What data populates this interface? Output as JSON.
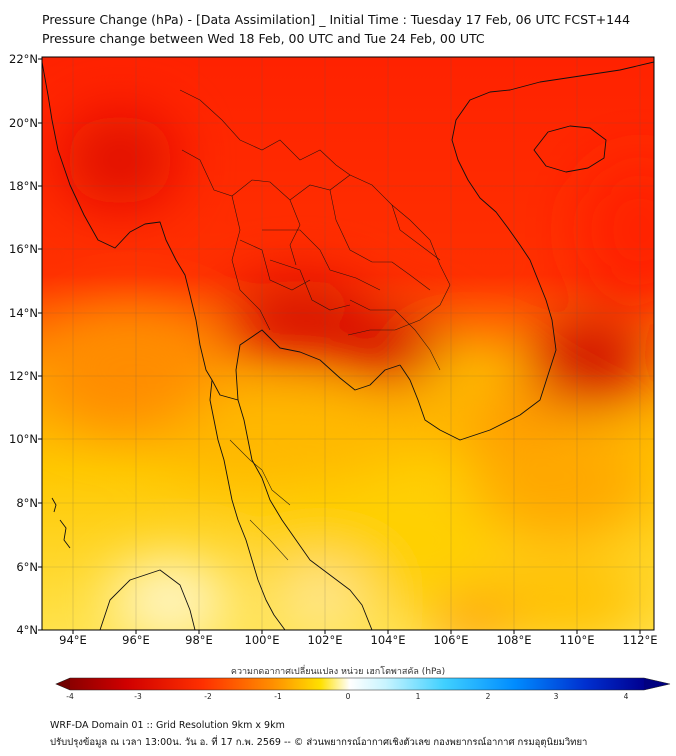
{
  "header": {
    "title": "Pressure Change (hPa) - [Data Assimilation] _ Initial Time : Tuesday 17 Feb, 06 UTC FCST+144",
    "subtitle": "Pressure change between Wed 18 Feb, 00 UTC and Tue 24 Feb, 00 UTC"
  },
  "map": {
    "lat_labels": [
      "22°N",
      "20°N",
      "18°N",
      "16°N",
      "14°N",
      "12°N",
      "10°N",
      "8°N",
      "6°N",
      "4°N"
    ],
    "lon_labels": [
      "94°E",
      "96°E",
      "98°E",
      "100°E",
      "102°E",
      "104°E",
      "106°E",
      "108°E",
      "110°E",
      "112°E"
    ],
    "lat_range": [
      4,
      22.3
    ],
    "lon_range": [
      93.1,
      112.5
    ],
    "grid": true,
    "field": "pressure change",
    "colors": {
      "strong_fall": "#c80000",
      "fall": "#ff2000",
      "moderate": "#ff7800",
      "weak": "#ffd000",
      "near_zero": "#fff7c0",
      "rise": "#00b4ff"
    }
  },
  "colorbar": {
    "title": "ความกดอากาศเปลี่ยนแปลง หน่วย เฮกโตพาสคัล (hPa)",
    "ticks": [
      "-4",
      "-3",
      "-2",
      "-1",
      "0",
      "1",
      "2",
      "3",
      "4"
    ],
    "range": [
      -4,
      4
    ]
  },
  "footer": {
    "line1": "WRF-DA Domain 01 :: Grid Resolution 9km x 9km",
    "line2": "ปรับปรุงข้อมูล ณ เวลา 13:00น. วัน อ. ที่ 17 ก.พ. 2569 -- © ส่วนพยากรณ์อากาศเชิงตัวเลข กองพยากรณ์อากาศ กรมอุตุนิยมวิทยา"
  }
}
